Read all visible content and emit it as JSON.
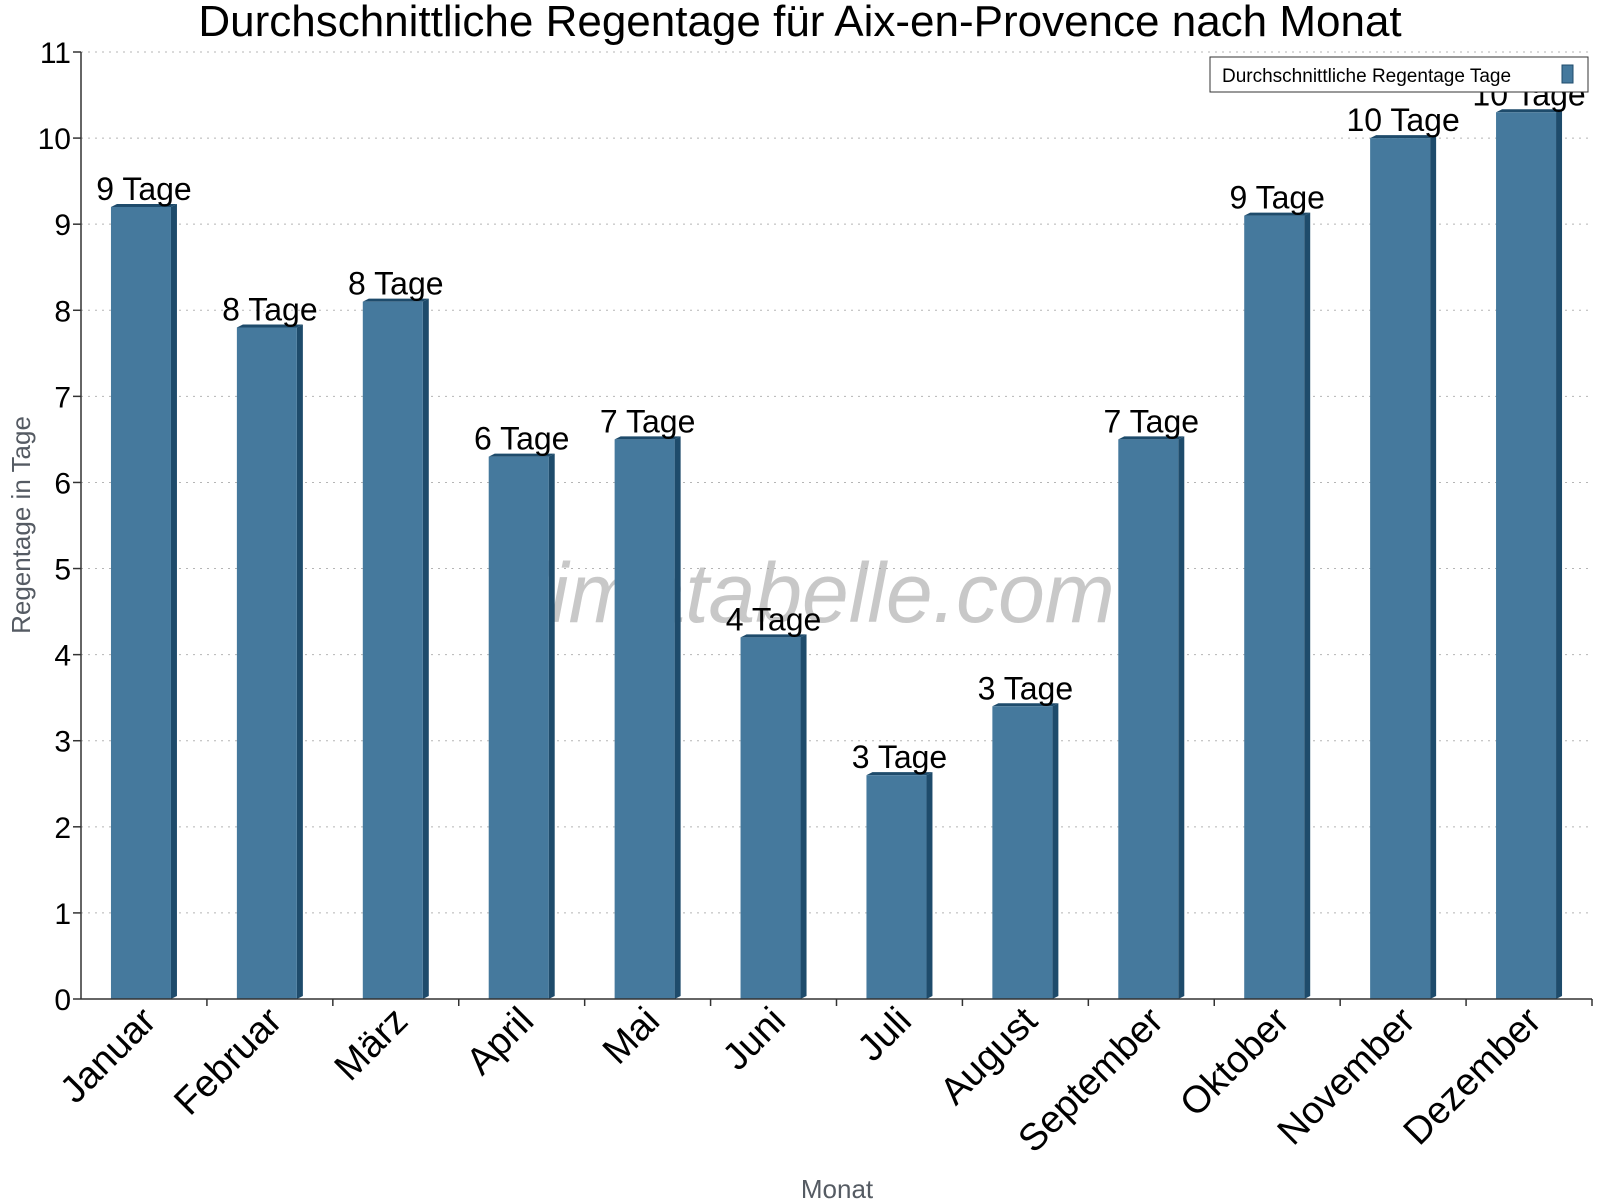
{
  "chart_data": {
    "type": "bar",
    "title": "Durchschnittliche Regentage für Aix-en-Provence nach Monat",
    "xlabel": "Monat",
    "ylabel": "Regentage in Tage",
    "ylim": [
      0,
      11
    ],
    "yticks": [
      "0",
      "1",
      "2",
      "3",
      "4",
      "5",
      "6",
      "7",
      "8",
      "9",
      "10",
      "11"
    ],
    "grid": true,
    "legend_position": "top-right",
    "categories": [
      "Januar",
      "Februar",
      "März",
      "April",
      "Mai",
      "Juni",
      "Juli",
      "August",
      "September",
      "Oktober",
      "November",
      "Dezember"
    ],
    "series": [
      {
        "name": "Durchschnittliche Regentage Tage",
        "values": [
          9.2,
          7.8,
          8.1,
          6.3,
          6.5,
          4.2,
          2.6,
          3.4,
          6.5,
          9.1,
          10.0,
          10.3
        ],
        "labels": [
          "9 Tage",
          "8 Tage",
          "8 Tage",
          "6 Tage",
          "7 Tage",
          "4 Tage",
          "3 Tage",
          "3 Tage",
          "7 Tage",
          "9 Tage",
          "10 Tage",
          "10 Tage"
        ],
        "color": "#45799d",
        "side_color": "#1e4b6b"
      }
    ],
    "watermark": "klimatabelle.com"
  }
}
